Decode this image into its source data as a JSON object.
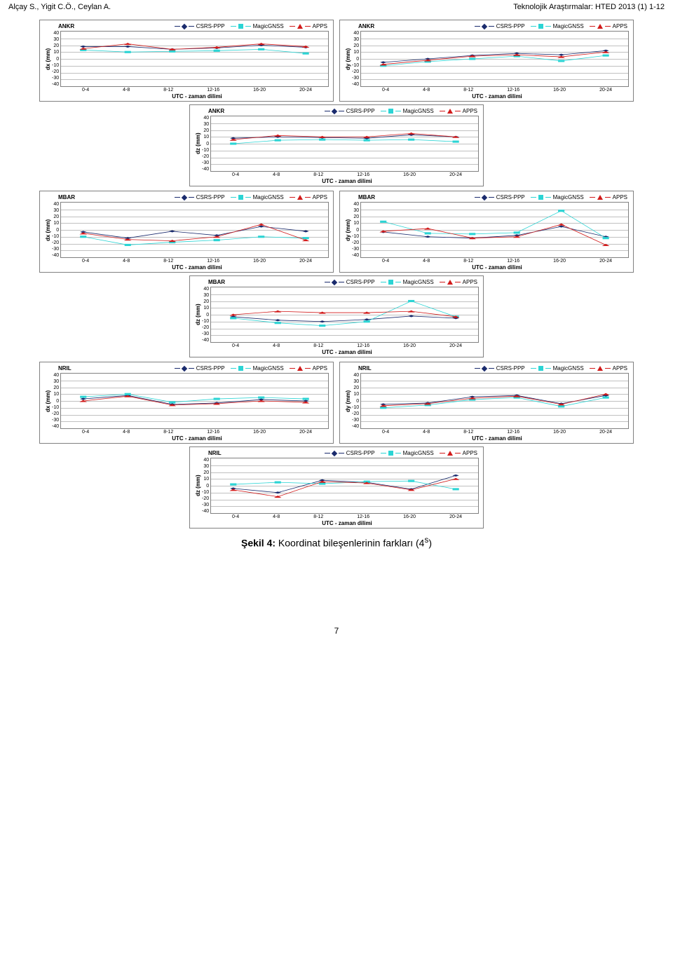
{
  "header": {
    "left": "Alçay S., Yigit C.Ö., Ceylan A.",
    "right": "Teknolojik Araştırmalar: HTED 2013 (1) 1-12"
  },
  "colors": {
    "csrs": "#1a2b6d",
    "magic": "#2bd4d4",
    "apps": "#d11a1a",
    "grid": "#c0c0c0",
    "border": "#808080",
    "text": "#000000",
    "bg": "#ffffff"
  },
  "common": {
    "legend": [
      "CSRS-PPP",
      "MagicGNSS",
      "APPS"
    ],
    "xticks": [
      "0-4",
      "4-8",
      "8-12",
      "12-16",
      "16-20",
      "20-24"
    ],
    "xlabel": "UTC - zaman dilimi",
    "yticks": [
      40,
      30,
      20,
      10,
      0,
      -10,
      -20,
      -30,
      -40
    ],
    "ylim_min": -40,
    "ylim_max": 40
  },
  "charts": [
    {
      "station": "ANKR",
      "ylabel": "dx (mm)",
      "series": {
        "csrs": [
          18,
          18,
          14,
          16,
          20,
          17
        ],
        "magic": [
          13,
          10,
          11,
          12,
          14,
          8
        ],
        "apps": [
          15,
          22,
          14,
          17,
          22,
          18
        ]
      }
    },
    {
      "station": "ANKR",
      "ylabel": "dy (mm)",
      "series": {
        "csrs": [
          -5,
          0,
          5,
          8,
          6,
          12
        ],
        "magic": [
          -10,
          -4,
          0,
          4,
          -3,
          5
        ],
        "apps": [
          -8,
          -2,
          4,
          6,
          3,
          10
        ]
      }
    },
    {
      "station": "ANKR",
      "ylabel": "dz (mm)",
      "series": {
        "csrs": [
          8,
          10,
          9,
          8,
          13,
          10
        ],
        "magic": [
          0,
          5,
          6,
          5,
          6,
          3
        ],
        "apps": [
          6,
          12,
          10,
          10,
          15,
          10
        ]
      }
    },
    {
      "station": "MBAR",
      "ylabel": "dx (mm)",
      "series": {
        "csrs": [
          -3,
          -12,
          -2,
          -8,
          5,
          -2
        ],
        "magic": [
          -10,
          -22,
          -18,
          -15,
          -10,
          -12
        ],
        "apps": [
          -5,
          -14,
          -16,
          -10,
          8,
          -15
        ]
      }
    },
    {
      "station": "MBAR",
      "ylabel": "dy (mm)",
      "series": {
        "csrs": [
          -3,
          -10,
          -12,
          -8,
          5,
          -10
        ],
        "magic": [
          12,
          -5,
          -6,
          -4,
          28,
          -12
        ],
        "apps": [
          -2,
          2,
          -12,
          -10,
          8,
          -22
        ]
      }
    },
    {
      "station": "MBAR",
      "ylabel": "dz (mm)",
      "series": {
        "csrs": [
          -3,
          -8,
          -10,
          -7,
          -2,
          -5
        ],
        "magic": [
          -5,
          -12,
          -16,
          -10,
          20,
          -3
        ],
        "apps": [
          0,
          5,
          3,
          3,
          5,
          -3
        ]
      }
    },
    {
      "station": "NRIL",
      "ylabel": "dx (mm)",
      "series": {
        "csrs": [
          3,
          8,
          -5,
          -3,
          2,
          0
        ],
        "magic": [
          6,
          10,
          -2,
          3,
          5,
          3
        ],
        "apps": [
          0,
          7,
          -6,
          -4,
          0,
          -2
        ]
      }
    },
    {
      "station": "NRIL",
      "ylabel": "dy (mm)",
      "series": {
        "csrs": [
          -5,
          -3,
          6,
          8,
          -4,
          8
        ],
        "magic": [
          -10,
          -6,
          2,
          5,
          -8,
          5
        ],
        "apps": [
          -7,
          -4,
          4,
          7,
          -5,
          10
        ]
      }
    },
    {
      "station": "NRIL",
      "ylabel": "dz (mm)",
      "series": {
        "csrs": [
          -4,
          -10,
          8,
          5,
          -5,
          15
        ],
        "magic": [
          2,
          5,
          3,
          6,
          7,
          -5
        ],
        "apps": [
          -6,
          -16,
          6,
          4,
          -6,
          10
        ]
      }
    }
  ],
  "caption": {
    "bold": "Şekil 4:",
    "rest": " Koordinat bileşenlerinin farkları (4",
    "sup": "s",
    "close": ")"
  },
  "page_number": "7"
}
